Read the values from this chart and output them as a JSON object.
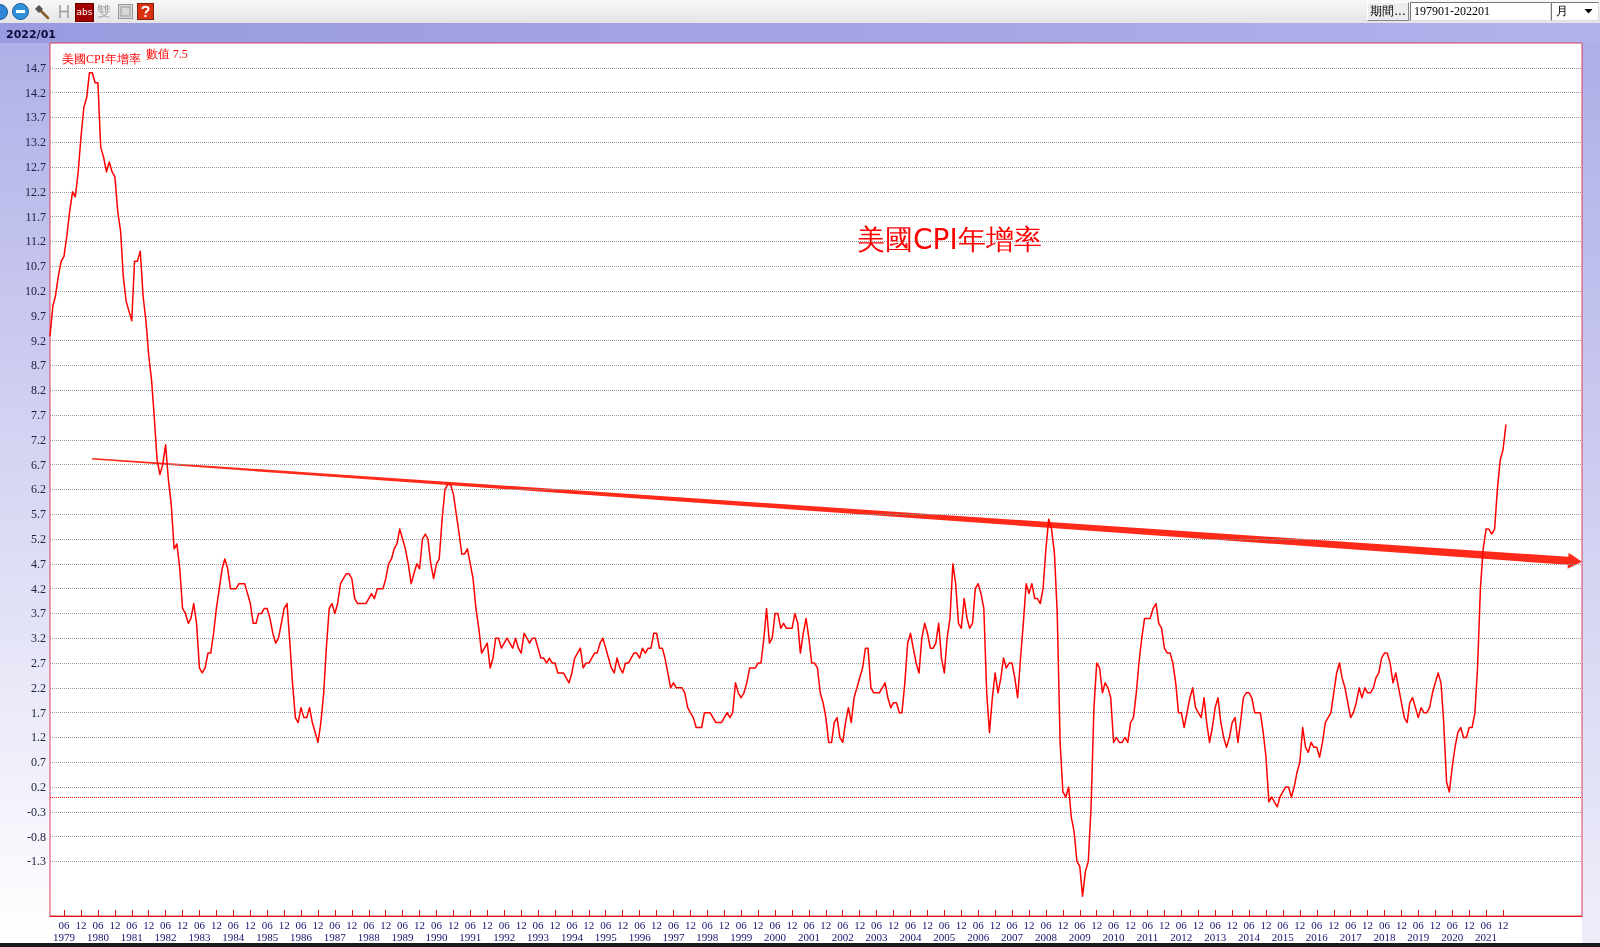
{
  "chart_data": {
    "type": "line",
    "title": "美國CPI年增率",
    "annotations": [
      "2022/01",
      "數值 7.5",
      "期間...",
      "197901-202201",
      "月",
      "abs",
      "雙"
    ],
    "x": [
      "1979-01",
      "1979-02",
      "1979-03",
      "1979-04",
      "1979-05",
      "1979-06",
      "1979-07",
      "1979-08",
      "1979-09",
      "1979-10",
      "1979-11",
      "1979-12",
      "1980-01",
      "1980-02",
      "1980-03",
      "1980-04",
      "1980-05",
      "1980-06",
      "1980-07",
      "1980-08",
      "1980-09",
      "1980-10",
      "1980-11",
      "1980-12",
      "1981-01",
      "1981-02",
      "1981-03",
      "1981-04",
      "1981-05",
      "1981-06",
      "1981-07",
      "1981-08",
      "1981-09",
      "1981-10",
      "1981-11",
      "1981-12",
      "1982-01",
      "1982-02",
      "1982-03",
      "1982-04",
      "1982-05",
      "1982-06",
      "1982-07",
      "1982-08",
      "1982-09",
      "1982-10",
      "1982-11",
      "1982-12",
      "1983-01",
      "1983-02",
      "1983-03",
      "1983-04",
      "1983-05",
      "1983-06",
      "1983-07",
      "1983-08",
      "1983-09",
      "1983-10",
      "1983-11",
      "1983-12",
      "1984-01",
      "1984-02",
      "1984-03",
      "1984-04",
      "1984-05",
      "1984-06",
      "1984-07",
      "1984-08",
      "1984-09",
      "1984-10",
      "1984-11",
      "1984-12",
      "1985-01",
      "1985-02",
      "1985-03",
      "1985-04",
      "1985-05",
      "1985-06",
      "1985-07",
      "1985-08",
      "1985-09",
      "1985-10",
      "1985-11",
      "1985-12",
      "1986-01",
      "1986-02",
      "1986-03",
      "1986-04",
      "1986-05",
      "1986-06",
      "1986-07",
      "1986-08",
      "1986-09",
      "1986-10",
      "1986-11",
      "1986-12",
      "1987-01",
      "1987-02",
      "1987-03",
      "1987-04",
      "1987-05",
      "1987-06",
      "1987-07",
      "1987-08",
      "1987-09",
      "1987-10",
      "1987-11",
      "1987-12",
      "1988-01",
      "1988-02",
      "1988-03",
      "1988-04",
      "1988-05",
      "1988-06",
      "1988-07",
      "1988-08",
      "1988-09",
      "1988-10",
      "1988-11",
      "1988-12",
      "1989-01",
      "1989-02",
      "1989-03",
      "1989-04",
      "1989-05",
      "1989-06",
      "1989-07",
      "1989-08",
      "1989-09",
      "1989-10",
      "1989-11",
      "1989-12",
      "1990-01",
      "1990-02",
      "1990-03",
      "1990-04",
      "1990-05",
      "1990-06",
      "1990-07",
      "1990-08",
      "1990-09",
      "1990-10",
      "1990-11",
      "1990-12",
      "1991-01",
      "1991-02",
      "1991-03",
      "1991-04",
      "1991-05",
      "1991-06",
      "1991-07",
      "1991-08",
      "1991-09",
      "1991-10",
      "1991-11",
      "1991-12",
      "1992-01",
      "1992-02",
      "1992-03",
      "1992-04",
      "1992-05",
      "1992-06",
      "1992-07",
      "1992-08",
      "1992-09",
      "1992-10",
      "1992-11",
      "1992-12",
      "1993-01",
      "1993-02",
      "1993-03",
      "1993-04",
      "1993-05",
      "1993-06",
      "1993-07",
      "1993-08",
      "1993-09",
      "1993-10",
      "1993-11",
      "1993-12",
      "1994-01",
      "1994-02",
      "1994-03",
      "1994-04",
      "1994-05",
      "1994-06",
      "1994-07",
      "1994-08",
      "1994-09",
      "1994-10",
      "1994-11",
      "1994-12",
      "1995-01",
      "1995-02",
      "1995-03",
      "1995-04",
      "1995-05",
      "1995-06",
      "1995-07",
      "1995-08",
      "1995-09",
      "1995-10",
      "1995-11",
      "1995-12",
      "1996-01",
      "1996-02",
      "1996-03",
      "1996-04",
      "1996-05",
      "1996-06",
      "1996-07",
      "1996-08",
      "1996-09",
      "1996-10",
      "1996-11",
      "1996-12",
      "1997-01",
      "1997-02",
      "1997-03",
      "1997-04",
      "1997-05",
      "1997-06",
      "1997-07",
      "1997-08",
      "1997-09",
      "1997-10",
      "1997-11",
      "1997-12",
      "1998-01",
      "1998-02",
      "1998-03",
      "1998-04",
      "1998-05",
      "1998-06",
      "1998-07",
      "1998-08",
      "1998-09",
      "1998-10",
      "1998-11",
      "1998-12",
      "1999-01",
      "1999-02",
      "1999-03",
      "1999-04",
      "1999-05",
      "1999-06",
      "1999-07",
      "1999-08",
      "1999-09",
      "1999-10",
      "1999-11",
      "1999-12",
      "2000-01",
      "2000-02",
      "2000-03",
      "2000-04",
      "2000-05",
      "2000-06",
      "2000-07",
      "2000-08",
      "2000-09",
      "2000-10",
      "2000-11",
      "2000-12",
      "2001-01",
      "2001-02",
      "2001-03",
      "2001-04",
      "2001-05",
      "2001-06",
      "2001-07",
      "2001-08",
      "2001-09",
      "2001-10",
      "2001-11",
      "2001-12",
      "2002-01",
      "2002-02",
      "2002-03",
      "2002-04",
      "2002-05",
      "2002-06",
      "2002-07",
      "2002-08",
      "2002-09",
      "2002-10",
      "2002-11",
      "2002-12",
      "2003-01",
      "2003-02",
      "2003-03",
      "2003-04",
      "2003-05",
      "2003-06",
      "2003-07",
      "2003-08",
      "2003-09",
      "2003-10",
      "2003-11",
      "2003-12",
      "2004-01",
      "2004-02",
      "2004-03",
      "2004-04",
      "2004-05",
      "2004-06",
      "2004-07",
      "2004-08",
      "2004-09",
      "2004-10",
      "2004-11",
      "2004-12",
      "2005-01",
      "2005-02",
      "2005-03",
      "2005-04",
      "2005-05",
      "2005-06",
      "2005-07",
      "2005-08",
      "2005-09",
      "2005-10",
      "2005-11",
      "2005-12",
      "2006-01",
      "2006-02",
      "2006-03",
      "2006-04",
      "2006-05",
      "2006-06",
      "2006-07",
      "2006-08",
      "2006-09",
      "2006-10",
      "2006-11",
      "2006-12",
      "2007-01",
      "2007-02",
      "2007-03",
      "2007-04",
      "2007-05",
      "2007-06",
      "2007-07",
      "2007-08",
      "2007-09",
      "2007-10",
      "2007-11",
      "2007-12",
      "2008-01",
      "2008-02",
      "2008-03",
      "2008-04",
      "2008-05",
      "2008-06",
      "2008-07",
      "2008-08",
      "2008-09",
      "2008-10",
      "2008-11",
      "2008-12",
      "2009-01",
      "2009-02",
      "2009-03",
      "2009-04",
      "2009-05",
      "2009-06",
      "2009-07",
      "2009-08",
      "2009-09",
      "2009-10",
      "2009-11",
      "2009-12",
      "2010-01",
      "2010-02",
      "2010-03",
      "2010-04",
      "2010-05",
      "2010-06",
      "2010-07",
      "2010-08",
      "2010-09",
      "2010-10",
      "2010-11",
      "2010-12",
      "2011-01",
      "2011-02",
      "2011-03",
      "2011-04",
      "2011-05",
      "2011-06",
      "2011-07",
      "2011-08",
      "2011-09",
      "2011-10",
      "2011-11",
      "2011-12",
      "2012-01",
      "2012-02",
      "2012-03",
      "2012-04",
      "2012-05",
      "2012-06",
      "2012-07",
      "2012-08",
      "2012-09",
      "2012-10",
      "2012-11",
      "2012-12",
      "2013-01",
      "2013-02",
      "2013-03",
      "2013-04",
      "2013-05",
      "2013-06",
      "2013-07",
      "2013-08",
      "2013-09",
      "2013-10",
      "2013-11",
      "2013-12",
      "2014-01",
      "2014-02",
      "2014-03",
      "2014-04",
      "2014-05",
      "2014-06",
      "2014-07",
      "2014-08",
      "2014-09",
      "2014-10",
      "2014-11",
      "2014-12",
      "2015-01",
      "2015-02",
      "2015-03",
      "2015-04",
      "2015-05",
      "2015-06",
      "2015-07",
      "2015-08",
      "2015-09",
      "2015-10",
      "2015-11",
      "2015-12",
      "2016-01",
      "2016-02",
      "2016-03",
      "2016-04",
      "2016-05",
      "2016-06",
      "2016-07",
      "2016-08",
      "2016-09",
      "2016-10",
      "2016-11",
      "2016-12",
      "2017-01",
      "2017-02",
      "2017-03",
      "2017-04",
      "2017-05",
      "2017-06",
      "2017-07",
      "2017-08",
      "2017-09",
      "2017-10",
      "2017-11",
      "2017-12",
      "2018-01",
      "2018-02",
      "2018-03",
      "2018-04",
      "2018-05",
      "2018-06",
      "2018-07",
      "2018-08",
      "2018-09",
      "2018-10",
      "2018-11",
      "2018-12",
      "2019-01",
      "2019-02",
      "2019-03",
      "2019-04",
      "2019-05",
      "2019-06",
      "2019-07",
      "2019-08",
      "2019-09",
      "2019-10",
      "2019-11",
      "2019-12",
      "2020-01",
      "2020-02",
      "2020-03",
      "2020-04",
      "2020-05",
      "2020-06",
      "2020-07",
      "2020-08",
      "2020-09",
      "2020-10",
      "2020-11",
      "2020-12",
      "2021-01",
      "2021-02",
      "2021-03",
      "2021-04",
      "2021-05",
      "2021-06",
      "2021-07",
      "2021-08",
      "2021-09",
      "2021-10",
      "2021-11",
      "2021-12",
      "2022-01"
    ],
    "series": [
      {
        "name": "美國CPI年增率",
        "color": "#ff0000",
        "values": [
          9.3,
          9.9,
          10.1,
          10.5,
          10.8,
          10.9,
          11.3,
          11.8,
          12.2,
          12.1,
          12.6,
          13.3,
          13.9,
          14.1,
          14.6,
          14.6,
          14.4,
          14.4,
          13.1,
          12.9,
          12.6,
          12.8,
          12.6,
          12.5,
          11.8,
          11.4,
          10.5,
          10.0,
          9.8,
          9.6,
          10.8,
          10.8,
          11.0,
          10.1,
          9.6,
          8.9,
          8.4,
          7.6,
          6.8,
          6.5,
          6.7,
          7.1,
          6.4,
          5.9,
          5.0,
          5.1,
          4.6,
          3.8,
          3.7,
          3.5,
          3.6,
          3.9,
          3.5,
          2.6,
          2.5,
          2.6,
          2.9,
          2.9,
          3.3,
          3.8,
          4.2,
          4.6,
          4.8,
          4.6,
          4.2,
          4.2,
          4.2,
          4.3,
          4.3,
          4.3,
          4.1,
          3.9,
          3.5,
          3.5,
          3.7,
          3.7,
          3.8,
          3.8,
          3.6,
          3.3,
          3.1,
          3.2,
          3.5,
          3.8,
          3.9,
          3.1,
          2.3,
          1.6,
          1.5,
          1.8,
          1.6,
          1.6,
          1.8,
          1.5,
          1.3,
          1.1,
          1.5,
          2.1,
          3.0,
          3.8,
          3.9,
          3.7,
          3.9,
          4.3,
          4.4,
          4.5,
          4.5,
          4.4,
          4.0,
          3.9,
          3.9,
          3.9,
          3.9,
          4.0,
          4.1,
          4.0,
          4.2,
          4.2,
          4.2,
          4.4,
          4.7,
          4.8,
          5.0,
          5.1,
          5.4,
          5.2,
          5.0,
          4.7,
          4.3,
          4.5,
          4.7,
          4.6,
          5.2,
          5.3,
          5.2,
          4.7,
          4.4,
          4.7,
          4.8,
          5.6,
          6.2,
          6.3,
          6.3,
          6.1,
          5.7,
          5.3,
          4.9,
          4.9,
          5.0,
          4.7,
          4.4,
          3.8,
          3.4,
          2.9,
          3.0,
          3.1,
          2.6,
          2.8,
          3.2,
          3.2,
          3.0,
          3.1,
          3.2,
          3.1,
          3.0,
          3.2,
          3.0,
          2.9,
          3.3,
          3.2,
          3.1,
          3.2,
          3.2,
          3.0,
          2.8,
          2.8,
          2.7,
          2.8,
          2.7,
          2.7,
          2.5,
          2.5,
          2.5,
          2.4,
          2.3,
          2.5,
          2.8,
          2.9,
          3.0,
          2.6,
          2.7,
          2.7,
          2.8,
          2.9,
          2.9,
          3.1,
          3.2,
          3.0,
          2.8,
          2.6,
          2.5,
          2.8,
          2.6,
          2.5,
          2.7,
          2.7,
          2.8,
          2.9,
          2.9,
          2.8,
          3.0,
          2.9,
          3.0,
          3.0,
          3.3,
          3.3,
          3.0,
          3.0,
          2.8,
          2.5,
          2.2,
          2.3,
          2.2,
          2.2,
          2.2,
          2.1,
          1.8,
          1.7,
          1.6,
          1.4,
          1.4,
          1.4,
          1.7,
          1.7,
          1.7,
          1.6,
          1.5,
          1.5,
          1.5,
          1.6,
          1.7,
          1.6,
          1.7,
          2.3,
          2.1,
          2.0,
          2.1,
          2.3,
          2.6,
          2.6,
          2.6,
          2.7,
          2.7,
          3.2,
          3.8,
          3.1,
          3.2,
          3.7,
          3.7,
          3.4,
          3.5,
          3.4,
          3.4,
          3.4,
          3.7,
          3.5,
          2.9,
          3.3,
          3.6,
          3.2,
          2.7,
          2.7,
          2.6,
          2.1,
          1.9,
          1.6,
          1.1,
          1.1,
          1.5,
          1.6,
          1.2,
          1.1,
          1.5,
          1.8,
          1.5,
          2.0,
          2.2,
          2.4,
          2.6,
          3.0,
          3.0,
          2.2,
          2.1,
          2.1,
          2.1,
          2.2,
          2.3,
          2.0,
          1.8,
          1.9,
          1.9,
          1.7,
          1.7,
          2.3,
          3.1,
          3.3,
          3.0,
          2.7,
          2.5,
          3.2,
          3.5,
          3.3,
          3.0,
          3.0,
          3.1,
          3.5,
          2.8,
          2.5,
          3.2,
          3.6,
          4.7,
          4.3,
          3.5,
          3.4,
          4.0,
          3.6,
          3.4,
          3.5,
          4.2,
          4.3,
          4.1,
          3.8,
          2.1,
          1.3,
          2.0,
          2.5,
          2.1,
          2.4,
          2.8,
          2.6,
          2.7,
          2.7,
          2.4,
          2.0,
          2.8,
          3.5,
          4.3,
          4.1,
          4.3,
          4.0,
          4.0,
          3.9,
          4.2,
          5.0,
          5.6,
          5.4,
          4.9,
          3.7,
          1.1,
          0.1,
          0.0,
          0.2,
          -0.4,
          -0.7,
          -1.3,
          -1.4,
          -2.0,
          -1.5,
          -1.3,
          -0.2,
          1.8,
          2.7,
          2.6,
          2.1,
          2.3,
          2.2,
          2.0,
          1.1,
          1.2,
          1.1,
          1.1,
          1.2,
          1.1,
          1.5,
          1.6,
          2.1,
          2.7,
          3.2,
          3.6,
          3.6,
          3.6,
          3.8,
          3.9,
          3.5,
          3.4,
          3.0,
          2.9,
          2.9,
          2.7,
          2.3,
          1.7,
          1.7,
          1.4,
          1.7,
          2.0,
          2.2,
          1.8,
          1.7,
          1.6,
          2.0,
          1.5,
          1.1,
          1.4,
          1.8,
          2.0,
          1.5,
          1.2,
          1.0,
          1.2,
          1.5,
          1.6,
          1.1,
          1.5,
          2.0,
          2.1,
          2.1,
          2.0,
          1.7,
          1.7,
          1.7,
          1.3,
          0.8,
          -0.1,
          0.0,
          -0.1,
          -0.2,
          0.0,
          0.1,
          0.2,
          0.2,
          0.0,
          0.2,
          0.5,
          0.7,
          1.4,
          1.0,
          0.9,
          1.1,
          1.0,
          1.0,
          0.8,
          1.1,
          1.5,
          1.6,
          1.7,
          2.1,
          2.5,
          2.7,
          2.4,
          2.2,
          1.9,
          1.6,
          1.7,
          1.9,
          2.2,
          2.0,
          2.2,
          2.1,
          2.1,
          2.2,
          2.4,
          2.5,
          2.8,
          2.9,
          2.9,
          2.7,
          2.3,
          2.5,
          2.2,
          1.9,
          1.6,
          1.5,
          1.9,
          2.0,
          1.8,
          1.6,
          1.8,
          1.7,
          1.7,
          1.8,
          2.1,
          2.3,
          2.5,
          2.3,
          1.5,
          0.3,
          0.1,
          0.6,
          1.0,
          1.3,
          1.4,
          1.2,
          1.2,
          1.4,
          1.4,
          1.7,
          2.6,
          4.2,
          5.0,
          5.4,
          5.4,
          5.3,
          5.4,
          6.2,
          6.8,
          7.0,
          7.5
        ]
      }
    ],
    "xlim": [
      "1979-01",
      "2024-04"
    ],
    "xticks": [
      {
        "value": "1979-06",
        "label": "06\n1979"
      },
      {
        "value": "1979-12",
        "label": "12"
      },
      {
        "value": "1980-06",
        "label": "06\n1980"
      },
      {
        "value": "1980-12",
        "label": "12"
      },
      {
        "value": "1981-06",
        "label": "06\n1981"
      },
      {
        "value": "1981-12",
        "label": "12"
      },
      {
        "value": "1982-06",
        "label": "06\n1982"
      },
      {
        "value": "1982-12",
        "label": "12"
      },
      {
        "value": "1983-06",
        "label": "06\n1983"
      },
      {
        "value": "1983-12",
        "label": "12"
      },
      {
        "value": "1984-06",
        "label": "06\n1984"
      },
      {
        "value": "1984-12",
        "label": "12"
      },
      {
        "value": "1985-06",
        "label": "06\n1985"
      },
      {
        "value": "1985-12",
        "label": "12"
      },
      {
        "value": "1986-06",
        "label": "06\n1986"
      },
      {
        "value": "1986-12",
        "label": "12"
      },
      {
        "value": "1987-06",
        "label": "06\n1987"
      },
      {
        "value": "1987-12",
        "label": "12"
      },
      {
        "value": "1988-06",
        "label": "06\n1988"
      },
      {
        "value": "1988-12",
        "label": "12"
      },
      {
        "value": "1989-06",
        "label": "06\n1989"
      },
      {
        "value": "1989-12",
        "label": "12"
      },
      {
        "value": "1990-06",
        "label": "06\n1990"
      },
      {
        "value": "1990-12",
        "label": "12"
      },
      {
        "value": "1991-06",
        "label": "06\n1991"
      },
      {
        "value": "1991-12",
        "label": "12"
      },
      {
        "value": "1992-06",
        "label": "06\n1992"
      },
      {
        "value": "1992-12",
        "label": "12"
      },
      {
        "value": "1993-06",
        "label": "06\n1993"
      },
      {
        "value": "1993-12",
        "label": "12"
      },
      {
        "value": "1994-06",
        "label": "06\n1994"
      },
      {
        "value": "1994-12",
        "label": "12"
      },
      {
        "value": "1995-06",
        "label": "06\n1995"
      },
      {
        "value": "1995-12",
        "label": "12"
      },
      {
        "value": "1996-06",
        "label": "06\n1996"
      },
      {
        "value": "1996-12",
        "label": "12"
      },
      {
        "value": "1997-06",
        "label": "06\n1997"
      },
      {
        "value": "1997-12",
        "label": "12"
      },
      {
        "value": "1998-06",
        "label": "06\n1998"
      },
      {
        "value": "1998-12",
        "label": "12"
      },
      {
        "value": "1999-06",
        "label": "06\n1999"
      },
      {
        "value": "1999-12",
        "label": "12"
      },
      {
        "value": "2000-06",
        "label": "06\n2000"
      },
      {
        "value": "2000-12",
        "label": "12"
      },
      {
        "value": "2001-06",
        "label": "06\n2001"
      },
      {
        "value": "2001-12",
        "label": "12"
      },
      {
        "value": "2002-06",
        "label": "06\n2002"
      },
      {
        "value": "2002-12",
        "label": "12"
      },
      {
        "value": "2003-06",
        "label": "06\n2003"
      },
      {
        "value": "2003-12",
        "label": "12"
      },
      {
        "value": "2004-06",
        "label": "06\n2004"
      },
      {
        "value": "2004-12",
        "label": "12"
      },
      {
        "value": "2005-06",
        "label": "06\n2005"
      },
      {
        "value": "2005-12",
        "label": "12"
      },
      {
        "value": "2006-06",
        "label": "06\n2006"
      },
      {
        "value": "2006-12",
        "label": "12"
      },
      {
        "value": "2007-06",
        "label": "06\n2007"
      },
      {
        "value": "2007-12",
        "label": "12"
      },
      {
        "value": "2008-06",
        "label": "06\n2008"
      },
      {
        "value": "2008-12",
        "label": "12"
      },
      {
        "value": "2009-06",
        "label": "06\n2009"
      },
      {
        "value": "2009-12",
        "label": "12"
      },
      {
        "value": "2010-06",
        "label": "06\n2010"
      },
      {
        "value": "2010-12",
        "label": "12"
      },
      {
        "value": "2011-06",
        "label": "06\n2011"
      },
      {
        "value": "2011-12",
        "label": "12"
      },
      {
        "value": "2012-06",
        "label": "06\n2012"
      },
      {
        "value": "2012-12",
        "label": "12"
      },
      {
        "value": "2013-06",
        "label": "06\n2013"
      },
      {
        "value": "2013-12",
        "label": "12"
      },
      {
        "value": "2014-06",
        "label": "06\n2014"
      },
      {
        "value": "2014-12",
        "label": "12"
      },
      {
        "value": "2015-06",
        "label": "06\n2015"
      },
      {
        "value": "2015-12",
        "label": "12"
      },
      {
        "value": "2016-06",
        "label": "06\n2016"
      },
      {
        "value": "2016-12",
        "label": "12"
      },
      {
        "value": "2017-06",
        "label": "06\n2017"
      },
      {
        "value": "2017-12",
        "label": "12"
      },
      {
        "value": "2018-06",
        "label": "06\n2018"
      },
      {
        "value": "2018-12",
        "label": "12"
      },
      {
        "value": "2019-06",
        "label": "06\n2019"
      },
      {
        "value": "2019-12",
        "label": "12"
      },
      {
        "value": "2020-06",
        "label": "06\n2020"
      },
      {
        "value": "2020-12",
        "label": "12"
      },
      {
        "value": "2021-06",
        "label": "06\n2021"
      },
      {
        "value": "2021-12",
        "label": "12"
      }
    ],
    "ylim": [
      -2.4,
      15.2
    ],
    "yticks": [
      -1.3,
      -0.8,
      -0.3,
      0.2,
      0.7,
      1.2,
      1.7,
      2.2,
      2.7,
      3.2,
      3.7,
      4.2,
      4.7,
      5.2,
      5.7,
      6.2,
      6.7,
      7.2,
      7.7,
      8.2,
      8.7,
      9.2,
      9.7,
      10.2,
      10.7,
      11.2,
      11.7,
      12.2,
      12.7,
      13.2,
      13.7,
      14.2,
      14.7
    ],
    "grid": "y",
    "legend": "top left",
    "marker": "none",
    "line_style": "solid",
    "ref_lines": [
      {
        "axis": "y",
        "value": 0,
        "color": "#ff0000",
        "line_style": "dotted"
      }
    ]
  }
}
